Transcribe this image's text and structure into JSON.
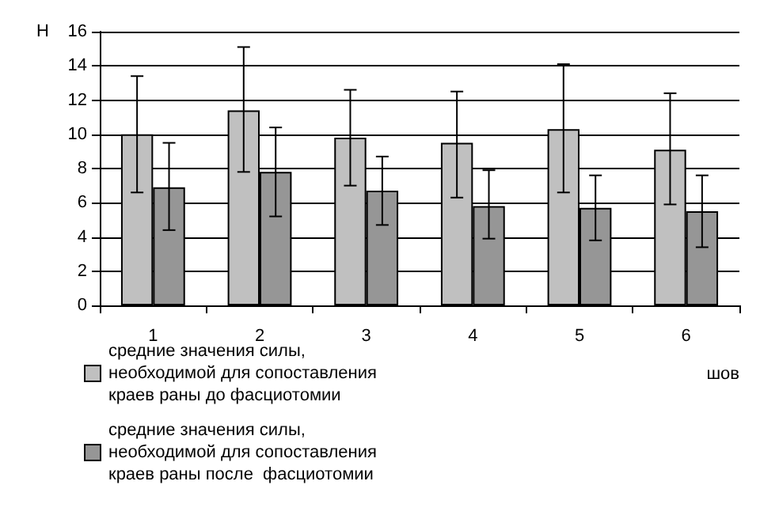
{
  "chart_data": {
    "type": "bar",
    "ylabel": "Н",
    "xlabel": "шов",
    "categories": [
      "1",
      "2",
      "3",
      "4",
      "5",
      "6"
    ],
    "series": [
      {
        "name": "средние значения силы, необходимой для сопоставления краев раны до фасциотомии",
        "color": "#c0c0c0",
        "values": [
          10.0,
          11.4,
          9.8,
          9.5,
          10.3,
          9.1
        ],
        "errors": [
          [
            6.6,
            13.4
          ],
          [
            7.8,
            15.1
          ],
          [
            7.0,
            12.6
          ],
          [
            6.3,
            12.5
          ],
          [
            6.6,
            14.1
          ],
          [
            5.9,
            12.4
          ]
        ]
      },
      {
        "name": "средние значения силы, необходимой для сопоставления краев раны после  фасциотомии",
        "color": "#969696",
        "values": [
          6.9,
          7.8,
          6.7,
          5.8,
          5.7,
          5.5
        ],
        "errors": [
          [
            4.4,
            9.5
          ],
          [
            5.2,
            10.4
          ],
          [
            4.7,
            8.7
          ],
          [
            3.9,
            7.9
          ],
          [
            3.8,
            7.6
          ],
          [
            3.4,
            7.6
          ]
        ]
      }
    ],
    "ylim": [
      0,
      16
    ],
    "yticks": [
      0,
      2,
      4,
      6,
      8,
      10,
      12,
      14,
      16
    ],
    "grid": "y",
    "legend": "bottom"
  }
}
